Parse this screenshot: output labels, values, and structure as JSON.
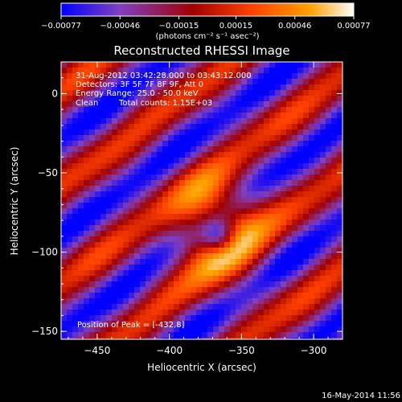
{
  "chart_data": {
    "type": "heatmap",
    "title": "Reconstructed RHESSI Image",
    "xlabel": "Heliocentric X (arcsec)",
    "ylabel": "Heliocentric Y (arcsec)",
    "xlim": [
      -475,
      -280
    ],
    "ylim": [
      -155,
      20
    ],
    "x_ticks": [
      -450,
      -400,
      -350,
      -300
    ],
    "x_tick_labels": [
      "−450",
      "−400",
      "−350",
      "−300"
    ],
    "y_ticks": [
      0,
      -50,
      -100,
      -150
    ],
    "y_tick_labels": [
      "0",
      "−50",
      "−100",
      "−150"
    ],
    "colorbar": {
      "min": -0.00077,
      "max": 0.00077,
      "ticks": [
        -0.00077,
        -0.00046,
        -0.00015,
        0.00015,
        0.00046,
        0.00077
      ],
      "tick_labels": [
        "−0.00077",
        "−0.00046",
        "−0.00015",
        "0.00015",
        "0.00046",
        "0.00077"
      ],
      "units": "(photons cm⁻² s⁻¹ asec⁻²)",
      "stops": [
        "#0000ff",
        "#8040c0",
        "#a00000",
        "#ff4000",
        "#ffa000",
        "#ffffff"
      ]
    },
    "annotations": {
      "time_range": "31-Aug-2012 03:42:28.000 to 03:43:12.000",
      "detectors": "Detectors: 3F 5F 7F 8F 9F, Att 0",
      "energy_range": "Energy Range: 25.0 - 50.0 keV",
      "algorithm": "Clean",
      "total_counts": "Total counts: 1.15E+03",
      "peak_position": "Position of Peak = [-432,8]"
    },
    "peak": {
      "x": -432,
      "y": 8
    }
  },
  "footer": {
    "timestamp": "16-May-2014 11:56"
  }
}
